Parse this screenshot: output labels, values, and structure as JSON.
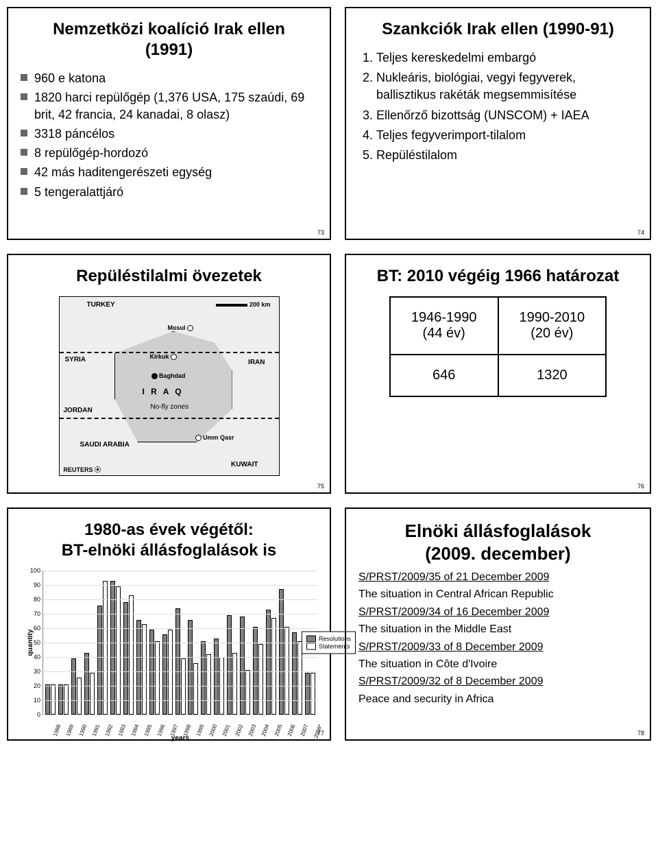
{
  "slides": {
    "s73": {
      "title": "Nemzetközi koalíció Irak ellen\n(1991)",
      "bullets": [
        "960 e katona",
        "1820 harci repülőgép (1,376 USA, 175 szaúdi, 69 brit, 42 francia, 24 kanadai, 8 olasz)",
        "3318 páncélos",
        "8 repülőgép-hordozó",
        "42 más haditengerészeti egység",
        "5 tengeralattjáró"
      ],
      "page": "73"
    },
    "s74": {
      "title": "Szankciók Irak ellen (1990-91)",
      "items": [
        "Teljes kereskedelmi embargó",
        "Nukleáris, biológiai, vegyi fegyverek, ballisztikus rakéták megsemmisítése",
        "Ellenőrző bizottság (UNSCOM) + IAEA",
        "Teljes fegyverimport-tilalom",
        "Repüléstilalom"
      ],
      "page": "74"
    },
    "s75": {
      "title": "Repüléstilalmi övezetek",
      "map": {
        "countries": {
          "turkey": "TURKEY",
          "syria": "SYRIA",
          "iran": "IRAN",
          "jordan": "JORDAN",
          "saudi": "SAUDI ARABIA",
          "kuwait": "KUWAIT",
          "iraq": "I R A Q"
        },
        "cities": {
          "mosul": "Mosul",
          "kirkuk": "Kirkuk",
          "baghdad": "Baghdad",
          "ummqasr": "Umm Qasr"
        },
        "nofly": "No-fly zones",
        "scale": "200 km",
        "source": "REUTERS"
      },
      "page": "75"
    },
    "s76": {
      "title": "BT: 2010 végéig 1966 határozat",
      "table": {
        "rows": [
          [
            "1946-1990\n(44 év)",
            "1990-2010\n(20 év)"
          ],
          [
            "646",
            "1320"
          ]
        ]
      },
      "page": "76"
    },
    "s77": {
      "title": "1980-as évek végétől:\nBT-elnöki állásfoglalások is",
      "chart": {
        "type": "bar",
        "y_label": "quantity",
        "x_label": "years",
        "y_ticks": [
          0,
          10,
          20,
          30,
          40,
          50,
          60,
          70,
          80,
          90,
          100
        ],
        "ylim": [
          0,
          100
        ],
        "x_labels": [
          "1988",
          "1989",
          "1990",
          "1991",
          "1992",
          "1993",
          "1994",
          "1995",
          "1996",
          "1997",
          "1998",
          "1999",
          "2000",
          "2001",
          "2002",
          "2003",
          "2004",
          "2005",
          "2006",
          "2007",
          "2008*"
        ],
        "series": {
          "resolutions": {
            "label": "Resolutions",
            "color": "#808080",
            "values": [
              20,
              20,
              38,
              42,
              75,
              92,
              77,
              65,
              58,
              55,
              73,
              65,
              50,
              52,
              68,
              67,
              60,
              72,
              86,
              56,
              28
            ]
          },
          "statements": {
            "label": "Statements",
            "color": "#ffffff",
            "values": [
              20,
              20,
              25,
              28,
              92,
              88,
              82,
              62,
              50,
              58,
              38,
              35,
              41,
              39,
              42,
              30,
              48,
              66,
              60,
              50,
              28
            ]
          }
        },
        "grid_color": "#dddddd",
        "border_color": "#888888"
      },
      "page": "77"
    },
    "s78": {
      "title": "Elnöki állásfoglalások\n(2009. december)",
      "entries": [
        {
          "ref": "S/PRST/2009/35 of 21 December 2009",
          "text": "The situation in Central African Republic"
        },
        {
          "ref": "S/PRST/2009/34 of 16 December 2009",
          "text": "The situation in the Middle East"
        },
        {
          "ref": "S/PRST/2009/33 of 8 December 2009",
          "text": "The situation in Côte d'Ivoire"
        },
        {
          "ref": "S/PRST/2009/32 of 8 December 2009",
          "text": "Peace and security in Africa"
        }
      ],
      "page": "78"
    }
  }
}
